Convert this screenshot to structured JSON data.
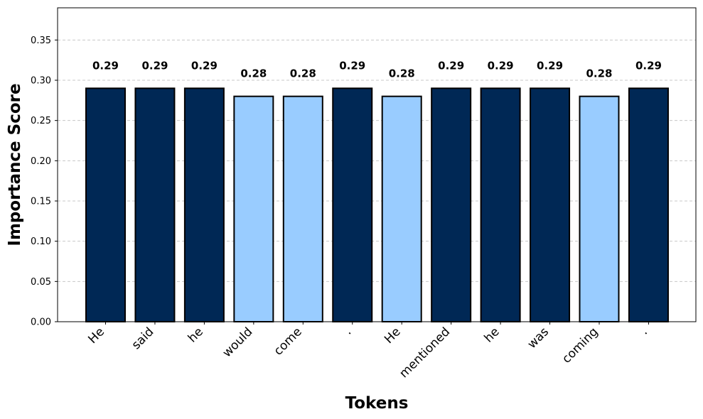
{
  "chart_data": {
    "type": "bar",
    "title": "",
    "xlabel": "Tokens",
    "ylabel": "Importance Score",
    "categories": [
      "He",
      "said",
      "he",
      "would",
      "come",
      ".",
      "He",
      "mentioned",
      "he",
      "was",
      "coming",
      "."
    ],
    "values": [
      0.29,
      0.29,
      0.29,
      0.28,
      0.28,
      0.29,
      0.28,
      0.29,
      0.29,
      0.29,
      0.28,
      0.29
    ],
    "value_labels": [
      "0.29",
      "0.29",
      "0.29",
      "0.28",
      "0.28",
      "0.29",
      "0.28",
      "0.29",
      "0.29",
      "0.29",
      "0.28",
      "0.29"
    ],
    "ylim": [
      0,
      0.39
    ],
    "yticks": [
      "0.00",
      "0.05",
      "0.10",
      "0.15",
      "0.20",
      "0.25",
      "0.30",
      "0.35"
    ],
    "ytick_values": [
      0,
      0.05,
      0.1,
      0.15,
      0.2,
      0.25,
      0.3,
      0.35
    ],
    "grid": "y-dashed",
    "colors": {
      "high": "#002855",
      "low": "#99ccff",
      "edge": "#000000",
      "grid": "#c8c8c8"
    },
    "color_rule": "dark bars for 0.29, light bars for 0.28"
  }
}
